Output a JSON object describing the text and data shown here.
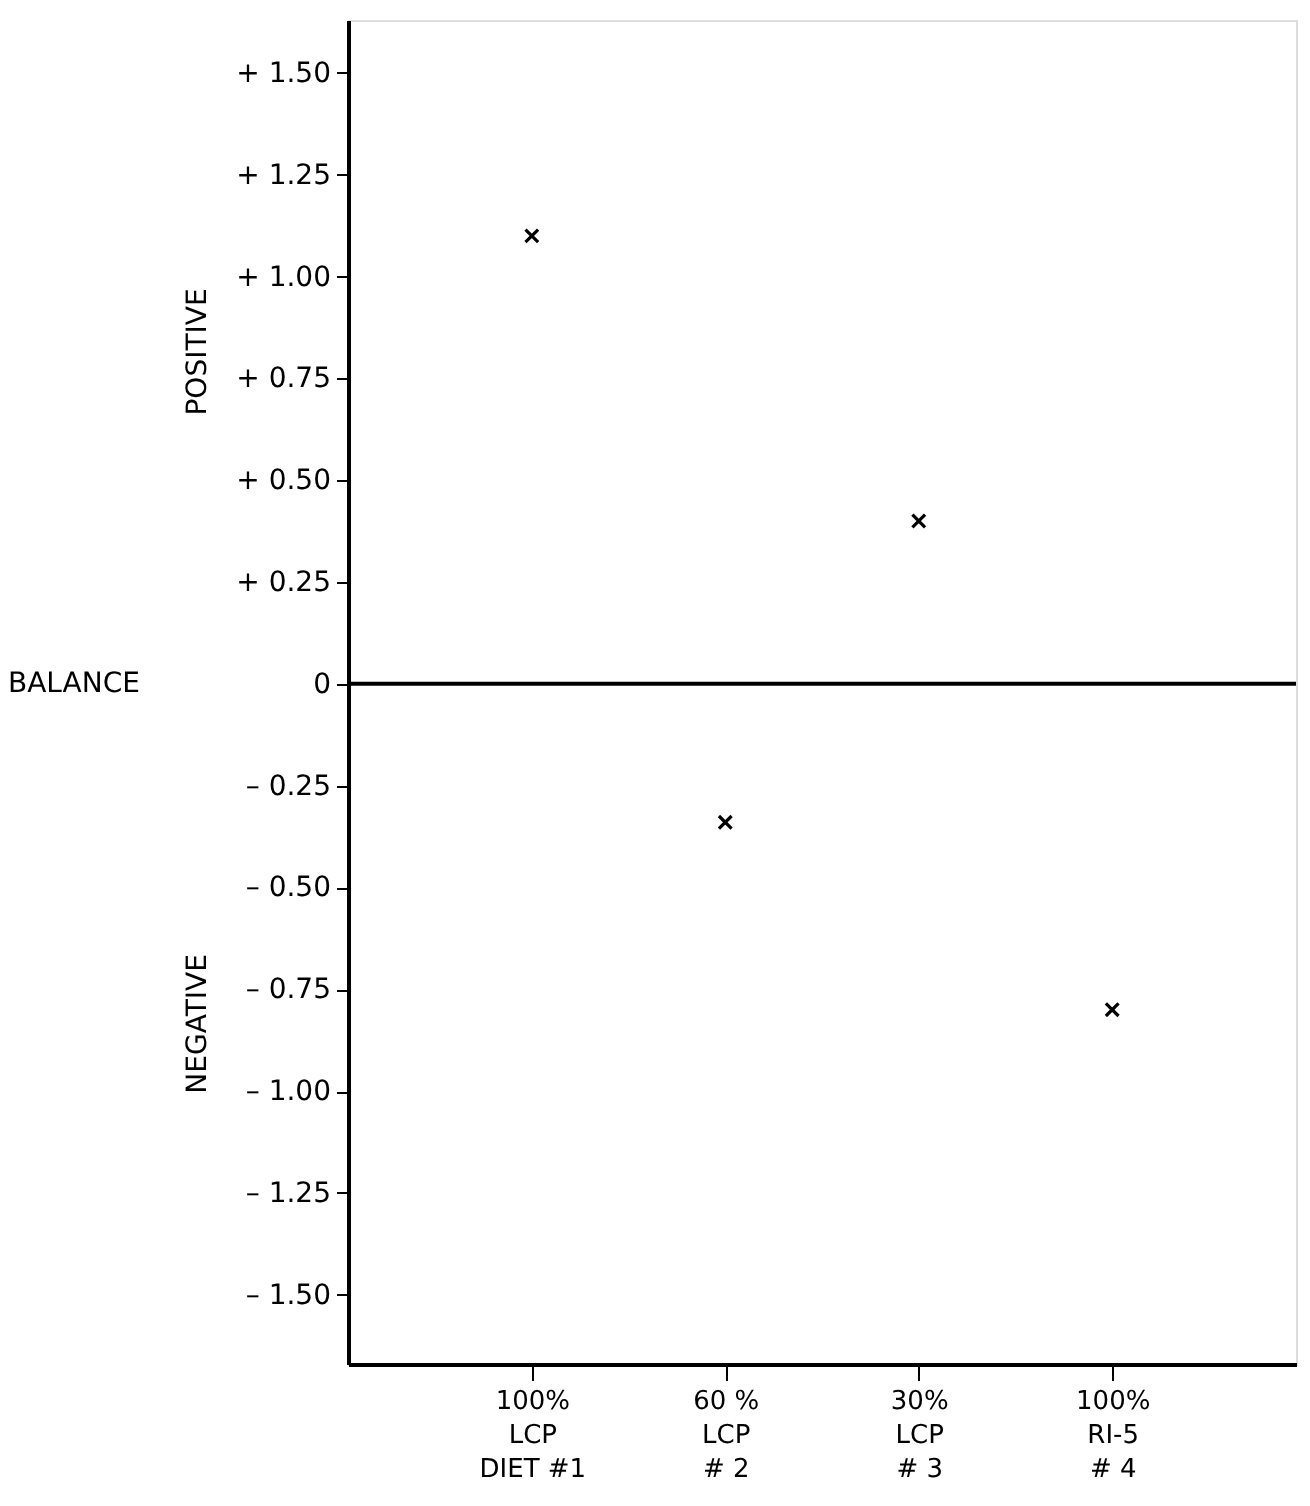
{
  "chart_data": {
    "type": "scatter",
    "categories": [
      "100%\nLCP\nDIET #1",
      "60 %\nLCP\n# 2",
      "30%\nLCP\n# 3",
      "100%\nRI-5\n# 4"
    ],
    "values": [
      1.1,
      -0.34,
      0.4,
      -0.8
    ],
    "color": "#000000",
    "marker": "cross",
    "ylim": [
      -1.67,
      1.63
    ],
    "yticks": [
      {
        "value": 1.5,
        "label": "+ 1.50"
      },
      {
        "value": 1.25,
        "label": "+ 1.25"
      },
      {
        "value": 1.0,
        "label": "+ 1.00"
      },
      {
        "value": 0.75,
        "label": "+ 0.75"
      },
      {
        "value": 0.5,
        "label": "+ 0.50"
      },
      {
        "value": 0.25,
        "label": "+ 0.25"
      },
      0,
      {
        "value": -0.25,
        "label": "– 0.25"
      },
      {
        "value": -0.5,
        "label": "– 0.50"
      },
      {
        "value": -0.75,
        "label": "– 0.75"
      },
      {
        "value": -1.0,
        "label": "– 1.00"
      },
      {
        "value": -1.25,
        "label": "– 1.25"
      },
      {
        "value": -1.5,
        "label": "– 1.50"
      }
    ],
    "ref_lines": [
      {
        "axis": "y",
        "value": 0,
        "label": "BALANCE",
        "color": "#000000"
      }
    ],
    "annotations": [
      "POSITIVE",
      "NEGATIVE"
    ],
    "grid": false
  }
}
